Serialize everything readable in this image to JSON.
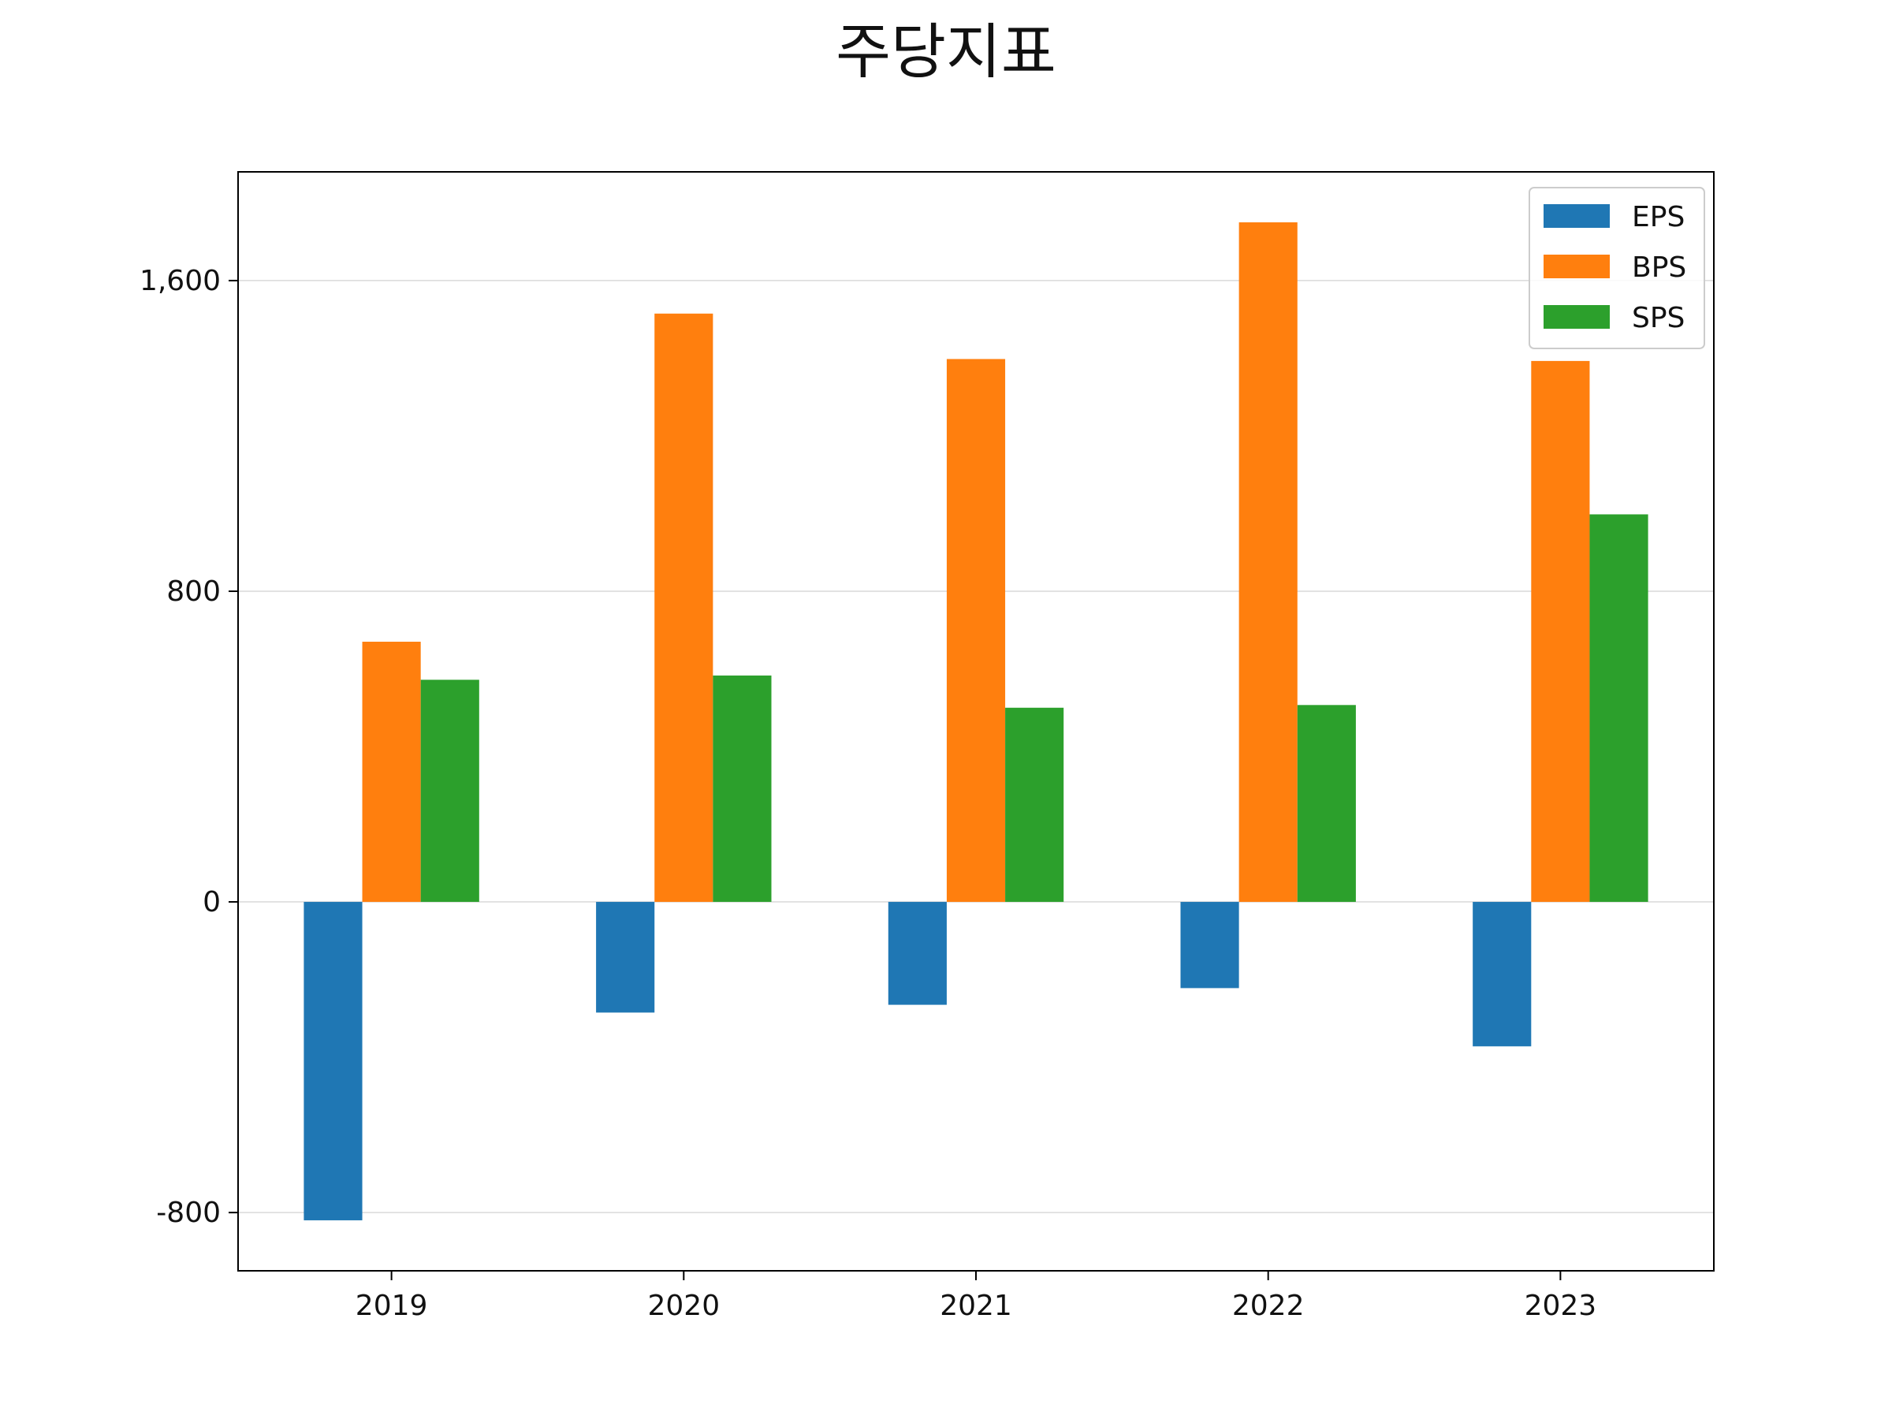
{
  "chart_data": {
    "type": "bar",
    "title": "주당지표",
    "xlabel": "",
    "ylabel": "",
    "categories": [
      "2019",
      "2020",
      "2021",
      "2022",
      "2023"
    ],
    "series": [
      {
        "name": "EPS",
        "color": "#1f77b4",
        "values": [
          -820,
          -285,
          -265,
          -222,
          -372
        ]
      },
      {
        "name": "BPS",
        "color": "#ff7f0e",
        "values": [
          670,
          1515,
          1398,
          1750,
          1393
        ]
      },
      {
        "name": "SPS",
        "color": "#2ca02c",
        "values": [
          572,
          583,
          500,
          507,
          998
        ]
      }
    ],
    "ylim": [
      -950,
      1880
    ],
    "yticks": [
      -800,
      0,
      800,
      1600
    ],
    "ytick_labels": [
      "-800",
      "0",
      "800",
      "1,600"
    ],
    "grid": {
      "y": true,
      "x": false,
      "color": "#d9d9d9"
    },
    "legend": {
      "position": "top-right"
    }
  }
}
